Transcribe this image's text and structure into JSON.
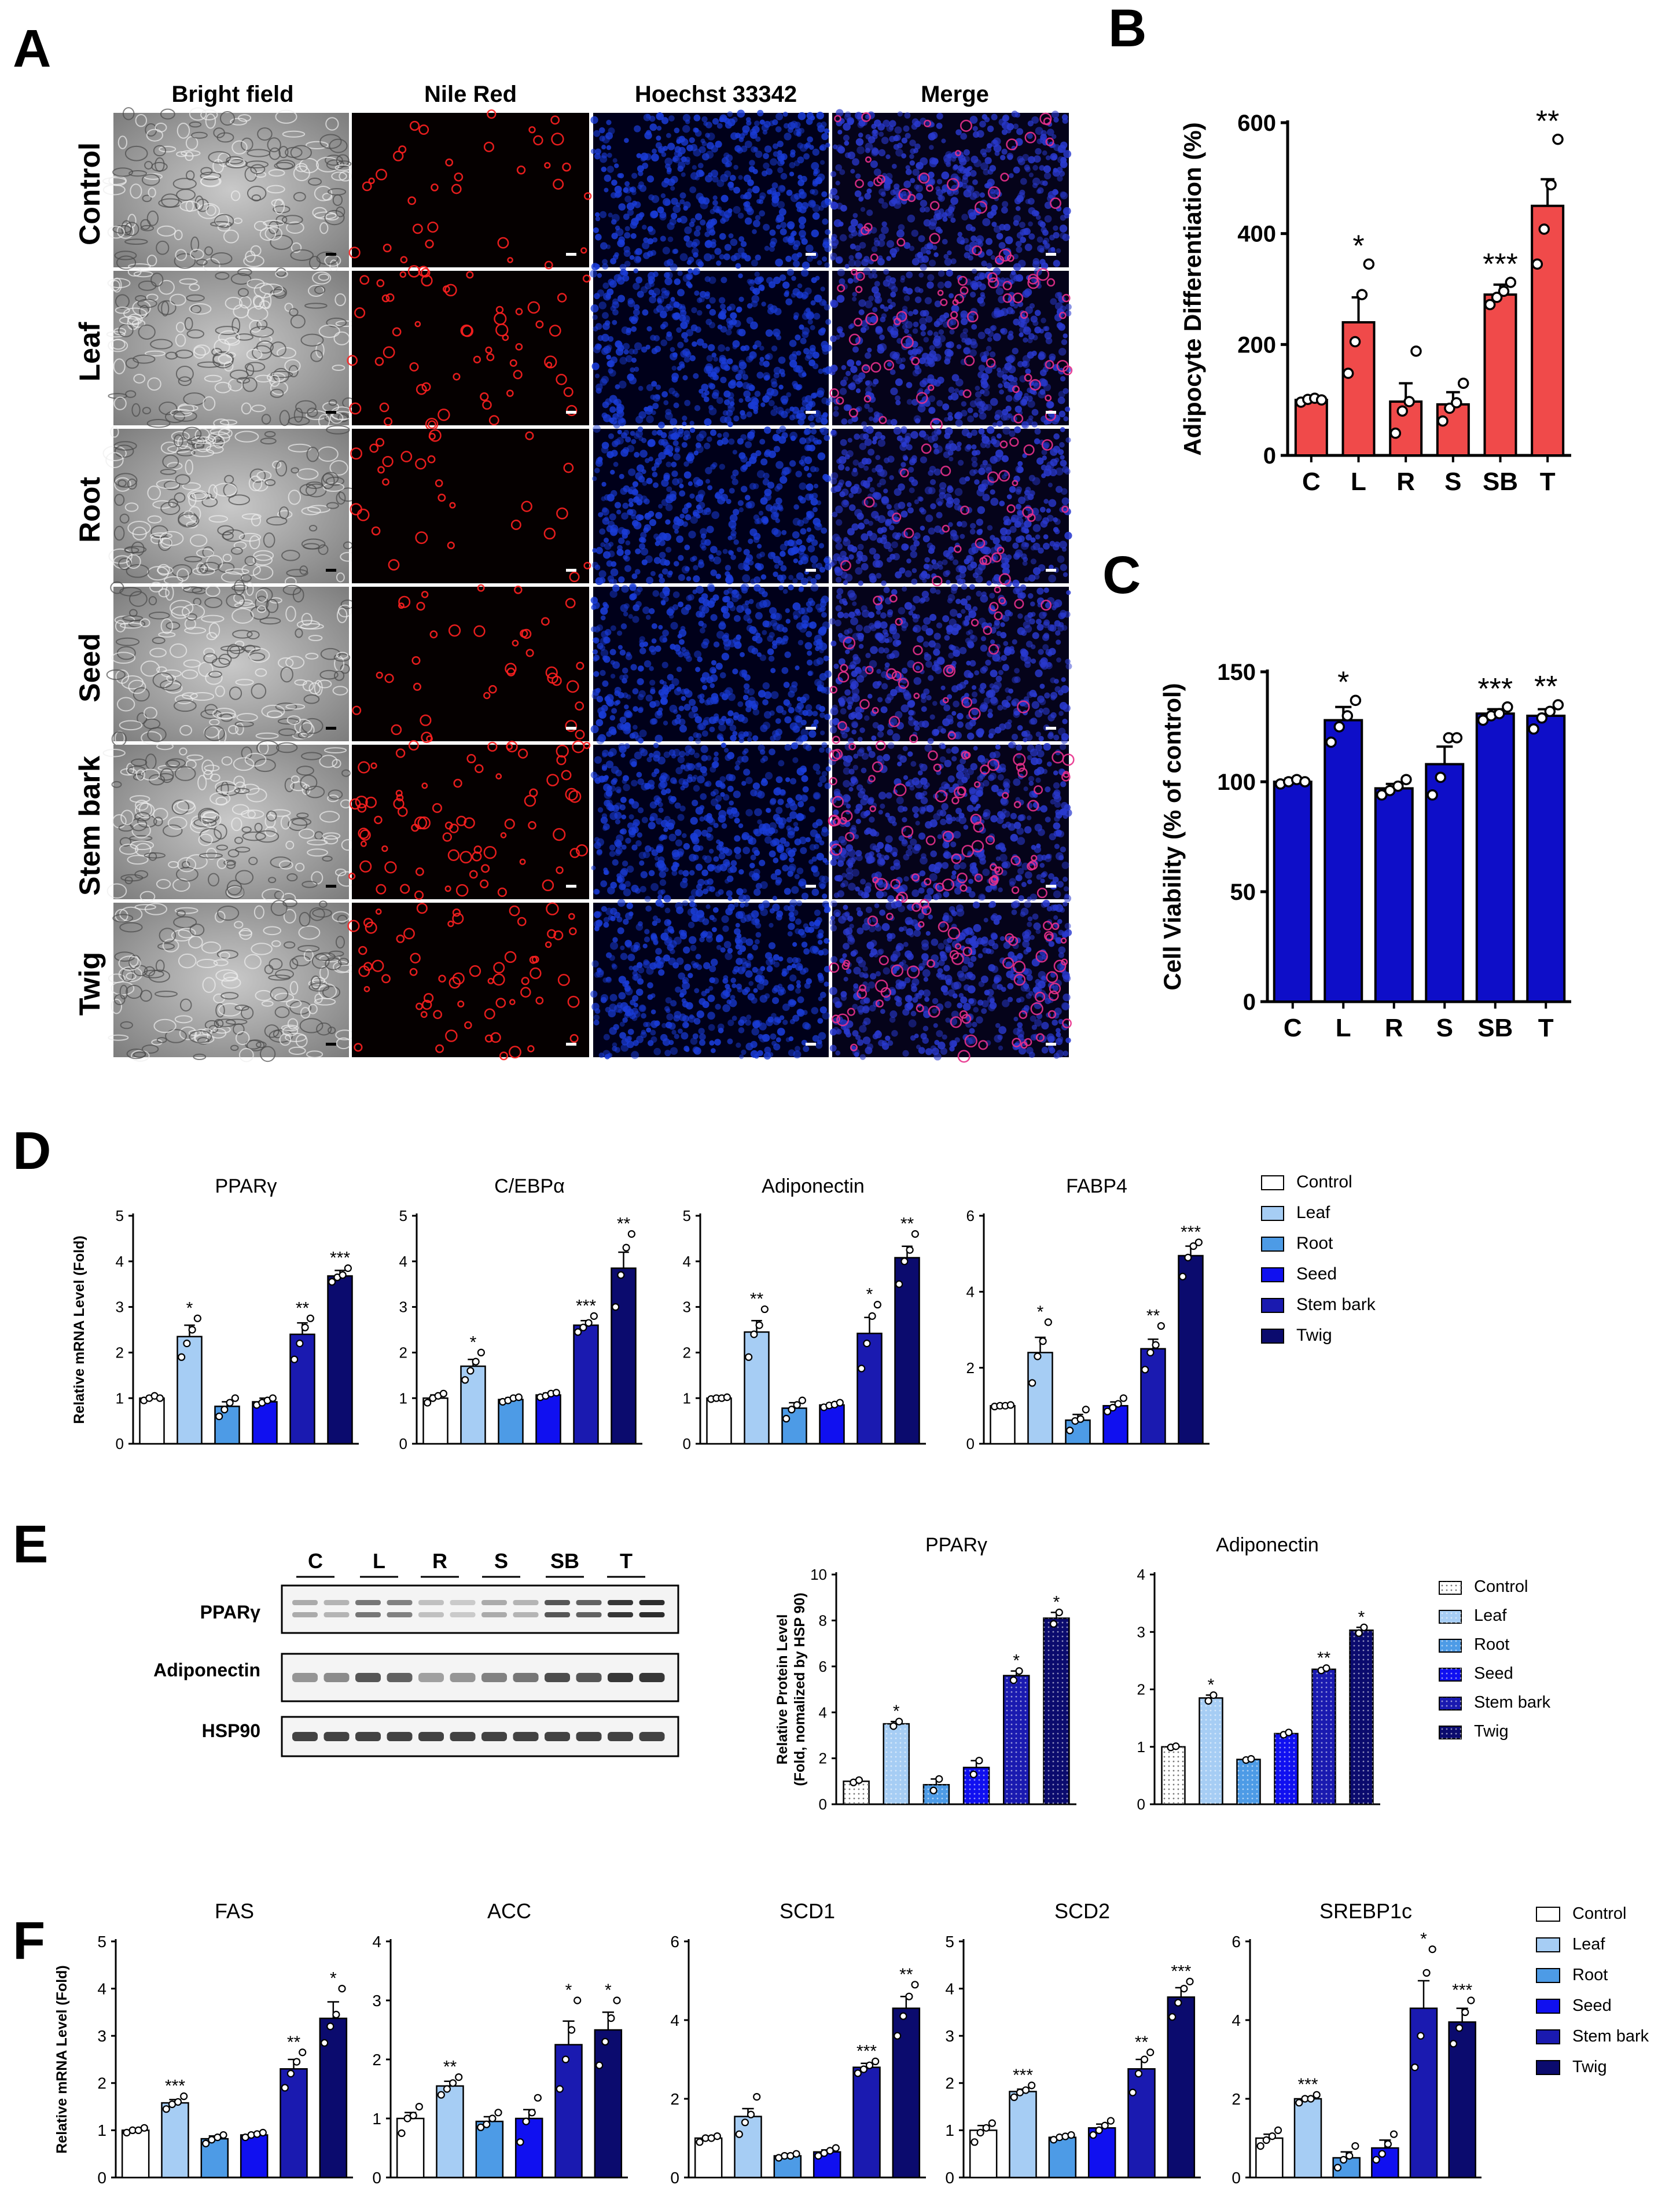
{
  "panels": {
    "A": {
      "letter": "A",
      "columns": [
        "Bright field",
        "Nile Red",
        "Hoechst 33342",
        "Merge"
      ],
      "rows": [
        "Control",
        "Leaf",
        "Root",
        "Seed",
        "Stem bark",
        "Twig"
      ]
    }
  },
  "chart_data": [
    {
      "id": "B",
      "letter": "B",
      "type": "bar",
      "ylabel": "Adipocyte Differentiation (%)",
      "categories": [
        "C",
        "L",
        "R",
        "S",
        "SB",
        "T"
      ],
      "values": [
        100,
        240,
        97,
        92,
        290,
        450
      ],
      "errors": [
        4,
        45,
        33,
        22,
        18,
        48
      ],
      "points": [
        [
          96,
          101,
          103,
          100
        ],
        [
          148,
          205,
          290,
          345
        ],
        [
          40,
          80,
          97,
          188
        ],
        [
          62,
          85,
          95,
          130
        ],
        [
          272,
          285,
          296,
          312
        ],
        [
          345,
          408,
          488,
          570
        ]
      ],
      "significance": [
        "",
        "*",
        "",
        "",
        "***",
        "**"
      ],
      "ylim": [
        0,
        600
      ],
      "yticks": [
        0,
        200,
        400,
        600
      ],
      "color": "#f04a4a"
    },
    {
      "id": "C",
      "letter": "C",
      "type": "bar",
      "ylabel": "Cell Viability (% of control)",
      "categories": [
        "C",
        "L",
        "R",
        "S",
        "SB",
        "T"
      ],
      "values": [
        100,
        128,
        97,
        108,
        131,
        130
      ],
      "errors": [
        1.5,
        6,
        2,
        8,
        2,
        3
      ],
      "points": [
        [
          99,
          100,
          101,
          100
        ],
        [
          118,
          125,
          130,
          137
        ],
        [
          94,
          96,
          98,
          101
        ],
        [
          94,
          102,
          120,
          120
        ],
        [
          128,
          130,
          131,
          134
        ],
        [
          124,
          129,
          132,
          135
        ]
      ],
      "significance": [
        "",
        "*",
        "",
        "",
        "***",
        "**"
      ],
      "ylim": [
        0,
        150
      ],
      "yticks": [
        0,
        50,
        100,
        150
      ],
      "color": "#0e0ec8"
    },
    {
      "id": "D1",
      "letter": "D",
      "type": "bar",
      "title": "PPARγ",
      "ylabel": "Relative mRNA Level (Fold)",
      "categories": [
        "Control",
        "Leaf",
        "Root",
        "Seed",
        "Stem bark",
        "Twig"
      ],
      "values": [
        1.0,
        2.35,
        0.82,
        0.92,
        2.4,
        3.68
      ],
      "errors": [
        0.05,
        0.25,
        0.1,
        0.08,
        0.25,
        0.12
      ],
      "points": [
        [
          0.95,
          1.0,
          1.05,
          1.0
        ],
        [
          1.9,
          2.2,
          2.5,
          2.75
        ],
        [
          0.6,
          0.75,
          0.9,
          1.0
        ],
        [
          0.85,
          0.9,
          0.95,
          1.0
        ],
        [
          1.85,
          2.2,
          2.55,
          2.75
        ],
        [
          3.55,
          3.65,
          3.7,
          3.85
        ]
      ],
      "significance": [
        "",
        "*",
        "",
        "",
        "**",
        "***"
      ],
      "ylim": [
        0,
        5
      ],
      "yticks": [
        0,
        1,
        2,
        3,
        4,
        5
      ]
    },
    {
      "id": "D2",
      "type": "bar",
      "title": "C/EBPα",
      "categories": [
        "Control",
        "Leaf",
        "Root",
        "Seed",
        "Stem bark",
        "Twig"
      ],
      "values": [
        1.0,
        1.7,
        0.97,
        1.07,
        2.6,
        3.85
      ],
      "errors": [
        0.07,
        0.15,
        0.04,
        0.04,
        0.1,
        0.35
      ],
      "points": [
        [
          0.9,
          1.0,
          1.05,
          1.1
        ],
        [
          1.4,
          1.6,
          1.8,
          2.0
        ],
        [
          0.92,
          0.95,
          1.0,
          1.02
        ],
        [
          1.02,
          1.05,
          1.1,
          1.12
        ],
        [
          2.45,
          2.55,
          2.65,
          2.8
        ],
        [
          3.0,
          3.7,
          4.3,
          4.6
        ]
      ],
      "significance": [
        "",
        "*",
        "",
        "",
        "***",
        "**"
      ],
      "ylim": [
        0,
        5
      ],
      "yticks": [
        0,
        1,
        2,
        3,
        4,
        5
      ]
    },
    {
      "id": "D3",
      "type": "bar",
      "title": "Adiponectin",
      "categories": [
        "Control",
        "Leaf",
        "Root",
        "Seed",
        "Stem bark",
        "Twig"
      ],
      "values": [
        1.0,
        2.45,
        0.78,
        0.85,
        2.42,
        4.08
      ],
      "errors": [
        0.02,
        0.25,
        0.12,
        0.04,
        0.35,
        0.25
      ],
      "points": [
        [
          0.98,
          1.0,
          1.0,
          1.02
        ],
        [
          1.9,
          2.4,
          2.6,
          2.95
        ],
        [
          0.55,
          0.75,
          0.85,
          0.95
        ],
        [
          0.8,
          0.84,
          0.86,
          0.9
        ],
        [
          1.65,
          2.2,
          2.8,
          3.05
        ],
        [
          3.5,
          4.0,
          4.25,
          4.6
        ]
      ],
      "significance": [
        "",
        "**",
        "",
        "",
        "*",
        "**"
      ],
      "ylim": [
        0,
        5
      ],
      "yticks": [
        0,
        1,
        2,
        3,
        4,
        5
      ]
    },
    {
      "id": "D4",
      "type": "bar",
      "title": "FABP4",
      "categories": [
        "Control",
        "Leaf",
        "Root",
        "Seed",
        "Stem bark",
        "Twig"
      ],
      "values": [
        1.0,
        2.4,
        0.62,
        1.0,
        2.5,
        4.95
      ],
      "errors": [
        0.03,
        0.4,
        0.15,
        0.1,
        0.25,
        0.25
      ],
      "points": [
        [
          0.98,
          1.0,
          1.0,
          1.02
        ],
        [
          1.6,
          2.3,
          2.7,
          3.2
        ],
        [
          0.35,
          0.6,
          0.65,
          0.9
        ],
        [
          0.85,
          0.95,
          1.05,
          1.2
        ],
        [
          1.95,
          2.4,
          2.6,
          3.1
        ],
        [
          4.4,
          4.9,
          5.2,
          5.3
        ]
      ],
      "significance": [
        "",
        "*",
        "",
        "",
        "**",
        "***"
      ],
      "ylim": [
        0,
        6
      ],
      "yticks": [
        0,
        2,
        4,
        6
      ]
    },
    {
      "id": "E1",
      "letter": "E",
      "type": "bar",
      "title": "PPARγ",
      "ylabel": "Relative Protein Level",
      "ylabel2": "(Fold, nomalized by HSP 90)",
      "categories": [
        "Control",
        "Leaf",
        "Root",
        "Seed",
        "Stem bark",
        "Twig"
      ],
      "values": [
        1.0,
        3.5,
        0.85,
        1.6,
        5.6,
        8.1
      ],
      "errors": [
        0.05,
        0.1,
        0.25,
        0.3,
        0.2,
        0.25
      ],
      "points": [
        [
          0.95,
          1.05
        ],
        [
          3.4,
          3.6
        ],
        [
          0.6,
          1.1
        ],
        [
          1.3,
          1.9
        ],
        [
          5.4,
          5.8
        ],
        [
          7.85,
          8.35
        ]
      ],
      "significance": [
        "",
        "*",
        "",
        "",
        "*",
        "*"
      ],
      "ylim": [
        0,
        10
      ],
      "yticks": [
        0,
        2,
        4,
        6,
        8,
        10
      ]
    },
    {
      "id": "E2",
      "type": "bar",
      "title": "Adiponectin",
      "categories": [
        "Control",
        "Leaf",
        "Root",
        "Seed",
        "Stem bark",
        "Twig"
      ],
      "values": [
        1.0,
        1.85,
        0.78,
        1.23,
        2.35,
        3.03
      ],
      "errors": [
        0.01,
        0.05,
        0.01,
        0.02,
        0.02,
        0.05
      ],
      "points": [
        [
          0.99,
          1.01
        ],
        [
          1.8,
          1.9
        ],
        [
          0.77,
          0.79
        ],
        [
          1.21,
          1.25
        ],
        [
          2.33,
          2.37
        ],
        [
          2.98,
          3.08
        ]
      ],
      "significance": [
        "",
        "*",
        "",
        "",
        "**",
        "*"
      ],
      "ylim": [
        0,
        4
      ],
      "yticks": [
        0,
        1,
        2,
        3,
        4
      ]
    },
    {
      "id": "F1",
      "letter": "F",
      "type": "bar",
      "title": "FAS",
      "ylabel": "Relative mRNA Level (Fold)",
      "categories": [
        "Control",
        "Leaf",
        "Root",
        "Seed",
        "Stem bark",
        "Twig"
      ],
      "values": [
        1.0,
        1.58,
        0.82,
        0.9,
        2.3,
        3.37
      ],
      "errors": [
        0.03,
        0.07,
        0.06,
        0.04,
        0.2,
        0.35
      ],
      "points": [
        [
          0.95,
          1.0,
          1.0,
          1.05
        ],
        [
          1.45,
          1.55,
          1.6,
          1.72
        ],
        [
          0.72,
          0.8,
          0.85,
          0.9
        ],
        [
          0.85,
          0.9,
          0.92,
          0.95
        ],
        [
          1.9,
          2.2,
          2.45,
          2.65
        ],
        [
          2.85,
          3.2,
          3.45,
          4.0
        ]
      ],
      "significance": [
        "",
        "***",
        "",
        "",
        "**",
        "*"
      ],
      "ylim": [
        0,
        5
      ],
      "yticks": [
        0,
        1,
        2,
        3,
        4,
        5
      ]
    },
    {
      "id": "F2",
      "type": "bar",
      "title": "ACC",
      "categories": [
        "Control",
        "Leaf",
        "Root",
        "Seed",
        "Stem bark",
        "Twig"
      ],
      "values": [
        1.0,
        1.55,
        0.95,
        1.0,
        2.25,
        2.5
      ],
      "errors": [
        0.1,
        0.08,
        0.08,
        0.15,
        0.4,
        0.3
      ],
      "points": [
        [
          0.75,
          1.0,
          1.05,
          1.2
        ],
        [
          1.4,
          1.5,
          1.6,
          1.7
        ],
        [
          0.85,
          0.9,
          1.0,
          1.1
        ],
        [
          0.6,
          0.95,
          1.1,
          1.35
        ],
        [
          1.5,
          2.0,
          2.5,
          3.0
        ],
        [
          1.9,
          2.3,
          2.7,
          3.0
        ]
      ],
      "significance": [
        "",
        "**",
        "",
        "",
        "*",
        "*"
      ],
      "ylim": [
        0,
        4
      ],
      "yticks": [
        0,
        1,
        2,
        3,
        4
      ]
    },
    {
      "id": "F3",
      "type": "bar",
      "title": "SCD1",
      "categories": [
        "Control",
        "Leaf",
        "Root",
        "Seed",
        "Stem bark",
        "Twig"
      ],
      "values": [
        1.0,
        1.55,
        0.55,
        0.65,
        2.8,
        4.3
      ],
      "errors": [
        0.05,
        0.2,
        0.05,
        0.05,
        0.1,
        0.3
      ],
      "points": [
        [
          0.9,
          1.0,
          1.0,
          1.05
        ],
        [
          1.1,
          1.4,
          1.6,
          2.05
        ],
        [
          0.5,
          0.55,
          0.55,
          0.6
        ],
        [
          0.55,
          0.62,
          0.68,
          0.75
        ],
        [
          2.65,
          2.75,
          2.85,
          2.95
        ],
        [
          3.6,
          4.1,
          4.6,
          4.9
        ]
      ],
      "significance": [
        "",
        "",
        "",
        "",
        "***",
        "**"
      ],
      "ylim": [
        0,
        6
      ],
      "yticks": [
        0,
        2,
        4,
        6
      ]
    },
    {
      "id": "F4",
      "type": "bar",
      "title": "SCD2",
      "categories": [
        "Control",
        "Leaf",
        "Root",
        "Seed",
        "Stem bark",
        "Twig"
      ],
      "values": [
        1.0,
        1.82,
        0.85,
        1.05,
        2.3,
        3.82
      ],
      "errors": [
        0.1,
        0.05,
        0.03,
        0.08,
        0.2,
        0.2
      ],
      "points": [
        [
          0.75,
          0.95,
          1.05,
          1.15
        ],
        [
          1.7,
          1.8,
          1.85,
          1.95
        ],
        [
          0.8,
          0.85,
          0.87,
          0.9
        ],
        [
          0.9,
          1.0,
          1.1,
          1.2
        ],
        [
          1.8,
          2.2,
          2.5,
          2.65
        ],
        [
          3.4,
          3.7,
          4.0,
          4.15
        ]
      ],
      "significance": [
        "",
        "***",
        "",
        "",
        "**",
        "***"
      ],
      "ylim": [
        0,
        5
      ],
      "yticks": [
        0,
        1,
        2,
        3,
        4,
        5
      ]
    },
    {
      "id": "F5",
      "type": "bar",
      "title": "SREBP1c",
      "categories": [
        "Control",
        "Leaf",
        "Root",
        "Seed",
        "Stem bark",
        "Twig"
      ],
      "values": [
        1.0,
        2.0,
        0.5,
        0.75,
        4.3,
        3.95
      ],
      "errors": [
        0.1,
        0.05,
        0.15,
        0.2,
        0.7,
        0.35
      ],
      "points": [
        [
          0.8,
          0.95,
          1.05,
          1.2
        ],
        [
          1.9,
          2.0,
          2.0,
          2.1
        ],
        [
          0.25,
          0.45,
          0.55,
          0.8
        ],
        [
          0.45,
          0.6,
          0.85,
          1.1
        ],
        [
          2.8,
          3.6,
          5.2,
          5.8
        ],
        [
          3.4,
          3.8,
          4.2,
          4.5
        ]
      ],
      "significance": [
        "",
        "***",
        "",
        "",
        "*",
        "***"
      ],
      "ylim": [
        0,
        6
      ],
      "yticks": [
        0,
        2,
        4,
        6
      ]
    }
  ],
  "legends": {
    "D": [
      "Control",
      "Leaf",
      "Root",
      "Seed",
      "Stem bark",
      "Twig"
    ],
    "E": [
      "Control",
      "Leaf",
      "Root",
      "Seed",
      "Stem bark",
      "Twig"
    ],
    "F": [
      "Control",
      "Leaf",
      "Root",
      "Seed",
      "Stem bark",
      "Twig"
    ]
  },
  "palette": {
    "Control": "#ffffff",
    "Leaf": "#a6cdf4",
    "Root": "#4d9be6",
    "Seed": "#1010f0",
    "Stem bark": "#1a1ab0",
    "Twig": "#0b0b6e"
  },
  "blot": {
    "lane_groups": [
      "C",
      "L",
      "R",
      "S",
      "SB",
      "T"
    ],
    "bands": [
      "PPARγ",
      "Adiponectin",
      "HSP90"
    ]
  }
}
